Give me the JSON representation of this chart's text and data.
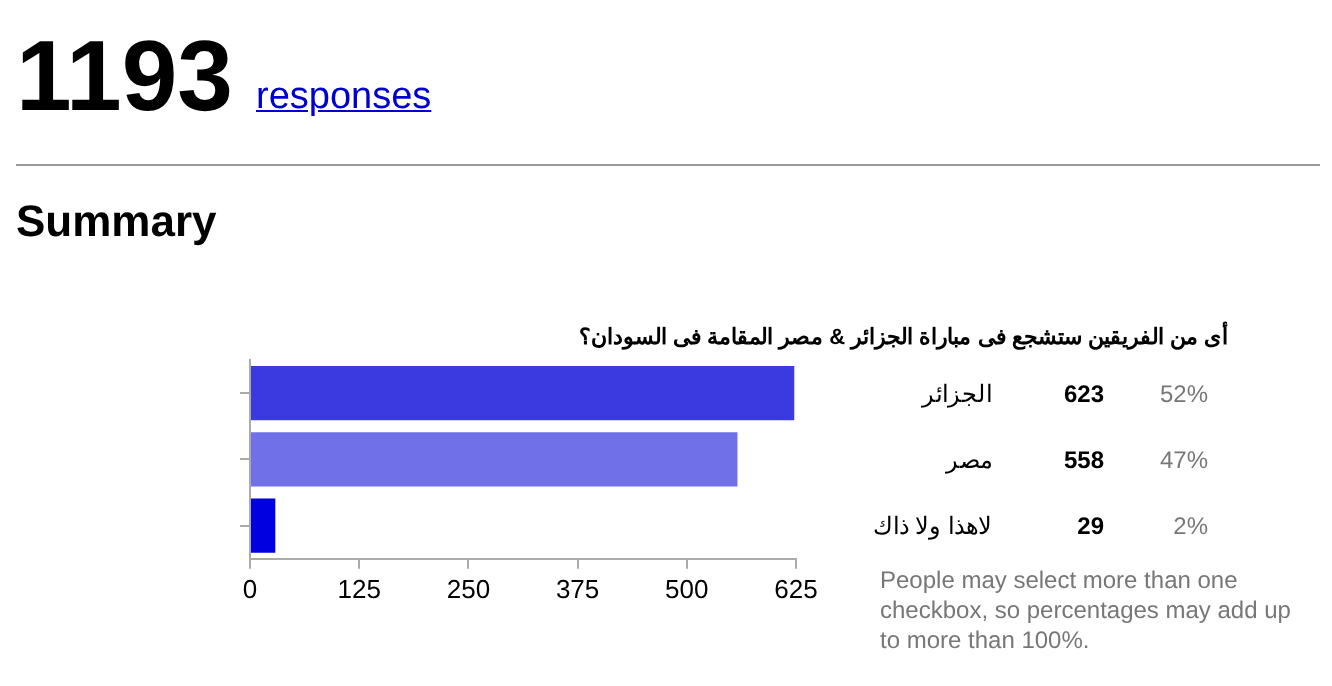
{
  "chart_data": {
    "type": "bar",
    "orientation": "horizontal",
    "title": "أى من الفريقين ستشجع فى مباراة الجزائر & مصر المقامة فى السودان؟",
    "categories": [
      "الجزائر",
      "مصر",
      "لاهذا ولا ذاك"
    ],
    "values": [
      623,
      558,
      29
    ],
    "colors": [
      "#3a3ae0",
      "#7070e8",
      "#0000e0"
    ],
    "data_labels": true,
    "xlim": [
      0,
      625
    ],
    "xticks": [
      0,
      125,
      250,
      375,
      500,
      625
    ],
    "grid": false,
    "legend": false,
    "annotations": [
      "1193",
      "responses",
      "Summary",
      "People may select more than one checkbox, so percentages may add up to more than 100%.",
      "52%",
      "47%",
      "2%"
    ]
  }
}
